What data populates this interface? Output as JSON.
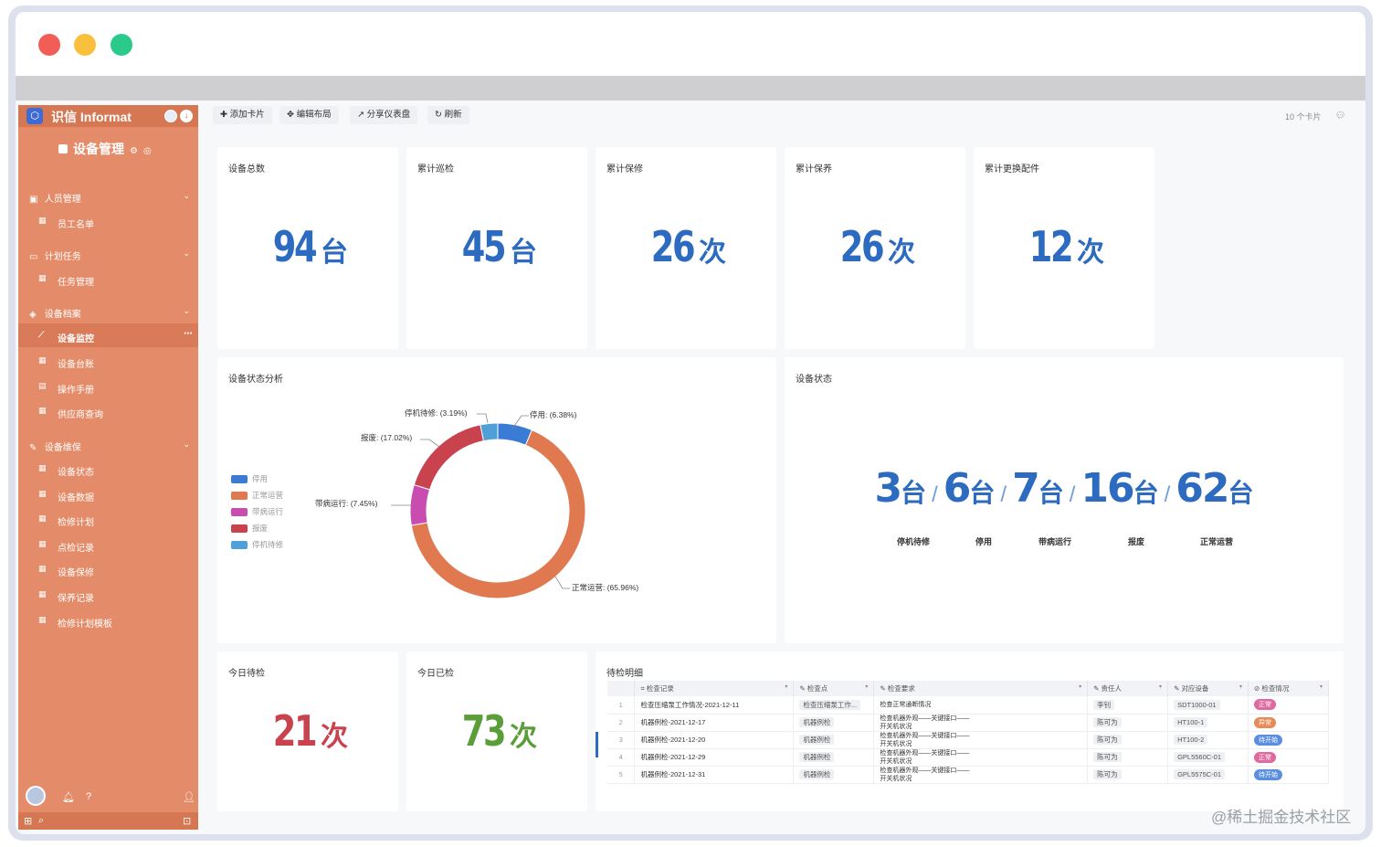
{
  "sidebar": {
    "brand": "识信 Informat",
    "app_title": "设备管理",
    "groups": [
      {
        "label": "人员管理",
        "items": [
          {
            "label": "员工名单"
          }
        ]
      },
      {
        "label": "计划任务",
        "items": [
          {
            "label": "任务管理"
          }
        ]
      },
      {
        "label": "设备档案",
        "items": [
          {
            "label": "设备监控",
            "active": true
          },
          {
            "label": "设备台账"
          },
          {
            "label": "操作手册"
          },
          {
            "label": "供应商查询"
          }
        ]
      },
      {
        "label": "设备维保",
        "items": [
          {
            "label": "设备状态"
          },
          {
            "label": "设备数据"
          },
          {
            "label": "检修计划"
          },
          {
            "label": "点检记录"
          },
          {
            "label": "设备保修"
          },
          {
            "label": "保养记录"
          },
          {
            "label": "检修计划模板"
          }
        ]
      }
    ]
  },
  "toolbar": {
    "add_card": "添加卡片",
    "edit_layout": "编辑布局",
    "share_dashboard": "分享仪表盘",
    "refresh": "刷新",
    "card_count": "10 个卡片"
  },
  "kpis": [
    {
      "title": "设备总数",
      "value": "94",
      "unit": "台",
      "color": "#2c6bbf"
    },
    {
      "title": "累计巡检",
      "value": "45",
      "unit": "台",
      "color": "#2c6bbf"
    },
    {
      "title": "累计保修",
      "value": "26",
      "unit": "次",
      "color": "#2c6bbf"
    },
    {
      "title": "累计保养",
      "value": "26",
      "unit": "次",
      "color": "#2c6bbf"
    },
    {
      "title": "累计更换配件",
      "value": "12",
      "unit": "次",
      "color": "#2c6bbf"
    }
  ],
  "status_chart_title": "设备状态分析",
  "chart_data": {
    "type": "pie",
    "donut": true,
    "legend_position": "left",
    "slices": [
      {
        "name": "停用",
        "percent": 6.38,
        "color": "#3a7bd5",
        "label": "停用: (6.38%)"
      },
      {
        "name": "正常运营",
        "percent": 65.96,
        "color": "#e07850",
        "label": "正常运营: (65.96%)"
      },
      {
        "name": "带病运行",
        "percent": 7.45,
        "color": "#c94cb0",
        "label": "带病运行: (7.45%)"
      },
      {
        "name": "报废",
        "percent": 17.02,
        "color": "#c9434f",
        "label": "报废: (17.02%)"
      },
      {
        "name": "停机待修",
        "percent": 3.19,
        "color": "#4f9fd8",
        "label": "停机待修: (3.19%)"
      }
    ]
  },
  "device_status": {
    "title": "设备状态",
    "stats": [
      {
        "value": "3",
        "unit": "台",
        "label": "停机待修"
      },
      {
        "value": "6",
        "unit": "台",
        "label": "停用"
      },
      {
        "value": "7",
        "unit": "台",
        "label": "带病运行"
      },
      {
        "value": "16",
        "unit": "台",
        "label": "报废"
      },
      {
        "value": "62",
        "unit": "台",
        "label": "正常运营"
      }
    ]
  },
  "today_pending": {
    "title": "今日待检",
    "value": "21",
    "unit": "次",
    "color": "#c9434f"
  },
  "today_done": {
    "title": "今日已检",
    "value": "73",
    "unit": "次",
    "color": "#5a9e3a"
  },
  "detail": {
    "title": "待检明细",
    "columns": [
      "检查记录",
      "检查点",
      "检查要求",
      "责任人",
      "对应设备",
      "检查情况"
    ],
    "rows": [
      {
        "idx": "1",
        "record": "检查压缩泵工作情况-2021-12-11",
        "point": "检查压缩泵工作...",
        "req": [
          "检查正常通断情况"
        ],
        "owner": "李钊",
        "device": "SDT1000-01",
        "status": "正常",
        "status_color": "#e06aa0"
      },
      {
        "idx": "2",
        "record": "机器例检-2021-12-17",
        "point": "机器例检",
        "req": [
          "检查机器外观——关键接口——",
          "开关机状况"
        ],
        "owner": "陈可为",
        "device": "HT100-1",
        "status": "异常",
        "status_color": "#e88a55"
      },
      {
        "idx": "3",
        "record": "机器例检-2021-12-20",
        "point": "机器例检",
        "req": [
          "检查机器外观——关键接口——",
          "开关机状况"
        ],
        "owner": "陈可为",
        "device": "HT100-2",
        "status": "待开始",
        "status_color": "#5a8fe0"
      },
      {
        "idx": "4",
        "record": "机器例检-2021-12-29",
        "point": "机器例检",
        "req": [
          "检查机器外观——关键接口——",
          "开关机状况"
        ],
        "owner": "陈可为",
        "device": "GPL5560C-01",
        "status": "正常",
        "status_color": "#e06aa0"
      },
      {
        "idx": "5",
        "record": "机器例检-2021-12-31",
        "point": "机器例检",
        "req": [
          "检查机器外观——关键接口——",
          "开关机状况"
        ],
        "owner": "陈可为",
        "device": "GPL5575C-01",
        "status": "待开始",
        "status_color": "#5a8fe0"
      }
    ]
  },
  "watermark": "@稀土掘金技术社区"
}
